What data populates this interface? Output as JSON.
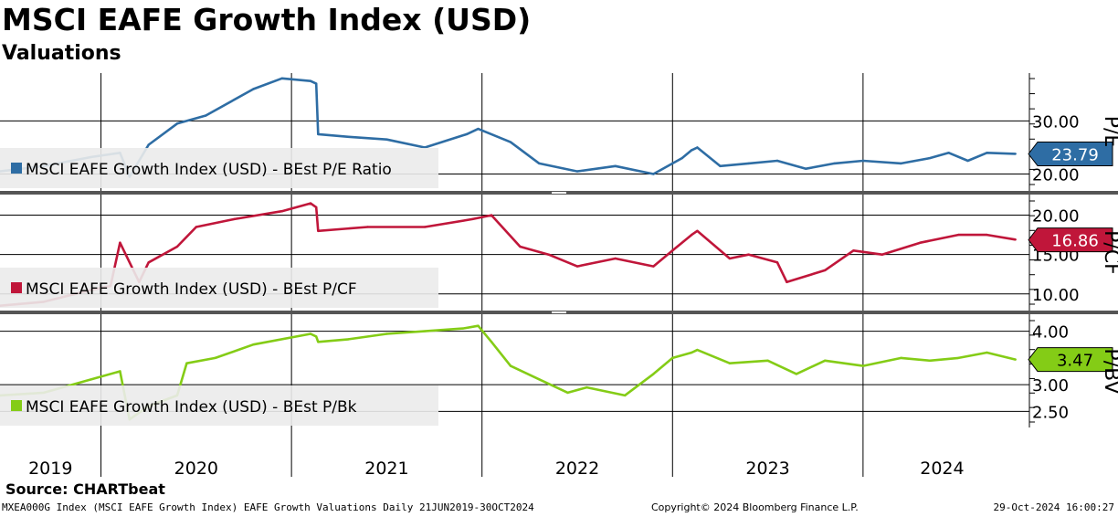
{
  "header": {
    "title": "MSCI EAFE Growth Index (USD)",
    "subtitle": "Valuations"
  },
  "footer": {
    "source": "Source: CHARTbeat",
    "ticker_info": "MXEA000G Index (MSCI EAFE Growth Index) EAFE Growth Valuations  Daily 21JUN2019-30OCT2024",
    "copyright": "Copyright© 2024 Bloomberg Finance L.P.",
    "timestamp": "29-Oct-2024 16:00:27"
  },
  "colors": {
    "pe": "#2e6da4",
    "pcf": "#c0163a",
    "pbv": "#84cc16",
    "divider": "#555555",
    "legend_bg": "#ebebeb"
  },
  "chart_data": [
    {
      "type": "line",
      "panel": "P/E",
      "axis_label": "P/E",
      "legend": "MSCI EAFE Growth Index (USD) - BEst P/E Ratio",
      "last_value": 23.79,
      "last_label": "23.79",
      "ylim": [
        17,
        39
      ],
      "yticks": [
        20,
        30
      ],
      "ytick_labels": [
        "20.00",
        "30.00"
      ],
      "x_year": [
        2019.47,
        2019.7,
        2019.95,
        2020.1,
        2020.15,
        2020.25,
        2020.4,
        2020.55,
        2020.8,
        2020.95,
        2021.1,
        2021.13,
        2021.14,
        2021.3,
        2021.5,
        2021.7,
        2021.92,
        2021.98,
        2022.15,
        2022.3,
        2022.5,
        2022.7,
        2022.9,
        2023.05,
        2023.1,
        2023.13,
        2023.25,
        2023.4,
        2023.55,
        2023.7,
        2023.85,
        2024.0,
        2024.2,
        2024.35,
        2024.45,
        2024.55,
        2024.65,
        2024.8
      ],
      "values": [
        20.5,
        21.5,
        23.2,
        24.0,
        19.5,
        25.5,
        29.5,
        31.0,
        36.0,
        38.0,
        37.5,
        37.0,
        27.5,
        27.0,
        26.5,
        25.0,
        27.5,
        28.5,
        26.0,
        22.0,
        20.5,
        21.5,
        20.0,
        23.0,
        24.5,
        25.0,
        21.5,
        22.0,
        22.5,
        21.0,
        22.0,
        22.5,
        22.0,
        23.0,
        24.0,
        22.5,
        24.0,
        23.8
      ]
    },
    {
      "type": "line",
      "panel": "P/CF",
      "axis_label": "P/CF",
      "legend": "MSCI EAFE Growth Index (USD) - BEst P/CF",
      "last_value": 16.86,
      "last_label": "16.86",
      "ylim": [
        8,
        22.5
      ],
      "yticks": [
        10,
        15,
        20
      ],
      "ytick_labels": [
        "10.00",
        "15.00",
        "20.00"
      ],
      "x_year": [
        2019.47,
        2019.7,
        2019.95,
        2020.05,
        2020.1,
        2020.2,
        2020.25,
        2020.4,
        2020.5,
        2020.7,
        2020.95,
        2021.1,
        2021.13,
        2021.14,
        2021.4,
        2021.7,
        2021.95,
        2022.05,
        2022.2,
        2022.35,
        2022.5,
        2022.7,
        2022.9,
        2023.0,
        2023.1,
        2023.13,
        2023.3,
        2023.4,
        2023.55,
        2023.6,
        2023.8,
        2023.95,
        2024.1,
        2024.3,
        2024.5,
        2024.65,
        2024.8
      ],
      "values": [
        8.5,
        9.0,
        10.5,
        11.0,
        16.5,
        11.5,
        14.0,
        16.0,
        18.5,
        19.5,
        20.5,
        21.5,
        21.0,
        18.0,
        18.5,
        18.5,
        19.5,
        20.0,
        16.0,
        15.0,
        13.5,
        14.5,
        13.5,
        15.5,
        17.5,
        18.0,
        14.5,
        15.0,
        14.0,
        11.5,
        13.0,
        15.5,
        15.0,
        16.5,
        17.5,
        17.5,
        16.9
      ]
    },
    {
      "type": "line",
      "panel": "P/BV",
      "axis_label": "P/BV",
      "legend": "MSCI EAFE Growth Index (USD) - BEst P/Bk",
      "last_value": 3.47,
      "last_label": "3.47",
      "ylim": [
        2.2,
        4.3
      ],
      "yticks": [
        2.5,
        3.0,
        4.0
      ],
      "ytick_labels": [
        "2.50",
        "3.00",
        "4.00"
      ],
      "x_year": [
        2019.47,
        2019.7,
        2019.95,
        2020.1,
        2020.15,
        2020.25,
        2020.4,
        2020.45,
        2020.6,
        2020.8,
        2021.1,
        2021.13,
        2021.14,
        2021.3,
        2021.5,
        2021.7,
        2021.9,
        2021.98,
        2022.05,
        2022.15,
        2022.3,
        2022.45,
        2022.55,
        2022.75,
        2022.9,
        2023.0,
        2023.1,
        2023.13,
        2023.3,
        2023.5,
        2023.65,
        2023.8,
        2024.0,
        2024.2,
        2024.35,
        2024.5,
        2024.65,
        2024.8
      ],
      "values": [
        2.8,
        2.85,
        3.1,
        3.25,
        2.35,
        2.6,
        2.8,
        3.4,
        3.5,
        3.75,
        3.95,
        3.9,
        3.8,
        3.85,
        3.95,
        4.0,
        4.05,
        4.1,
        3.8,
        3.35,
        3.1,
        2.85,
        2.95,
        2.8,
        3.2,
        3.5,
        3.6,
        3.65,
        3.4,
        3.45,
        3.2,
        3.45,
        3.35,
        3.5,
        3.45,
        3.5,
        3.6,
        3.47
      ]
    },
    {
      "type": "axis",
      "panel": "time",
      "x_categories": [
        "2019",
        "2020",
        "2021",
        "2022",
        "2023",
        "2024"
      ],
      "xlim": [
        2019.47,
        2024.83
      ],
      "gridlines": true,
      "legend_position": "bottom-left"
    }
  ]
}
